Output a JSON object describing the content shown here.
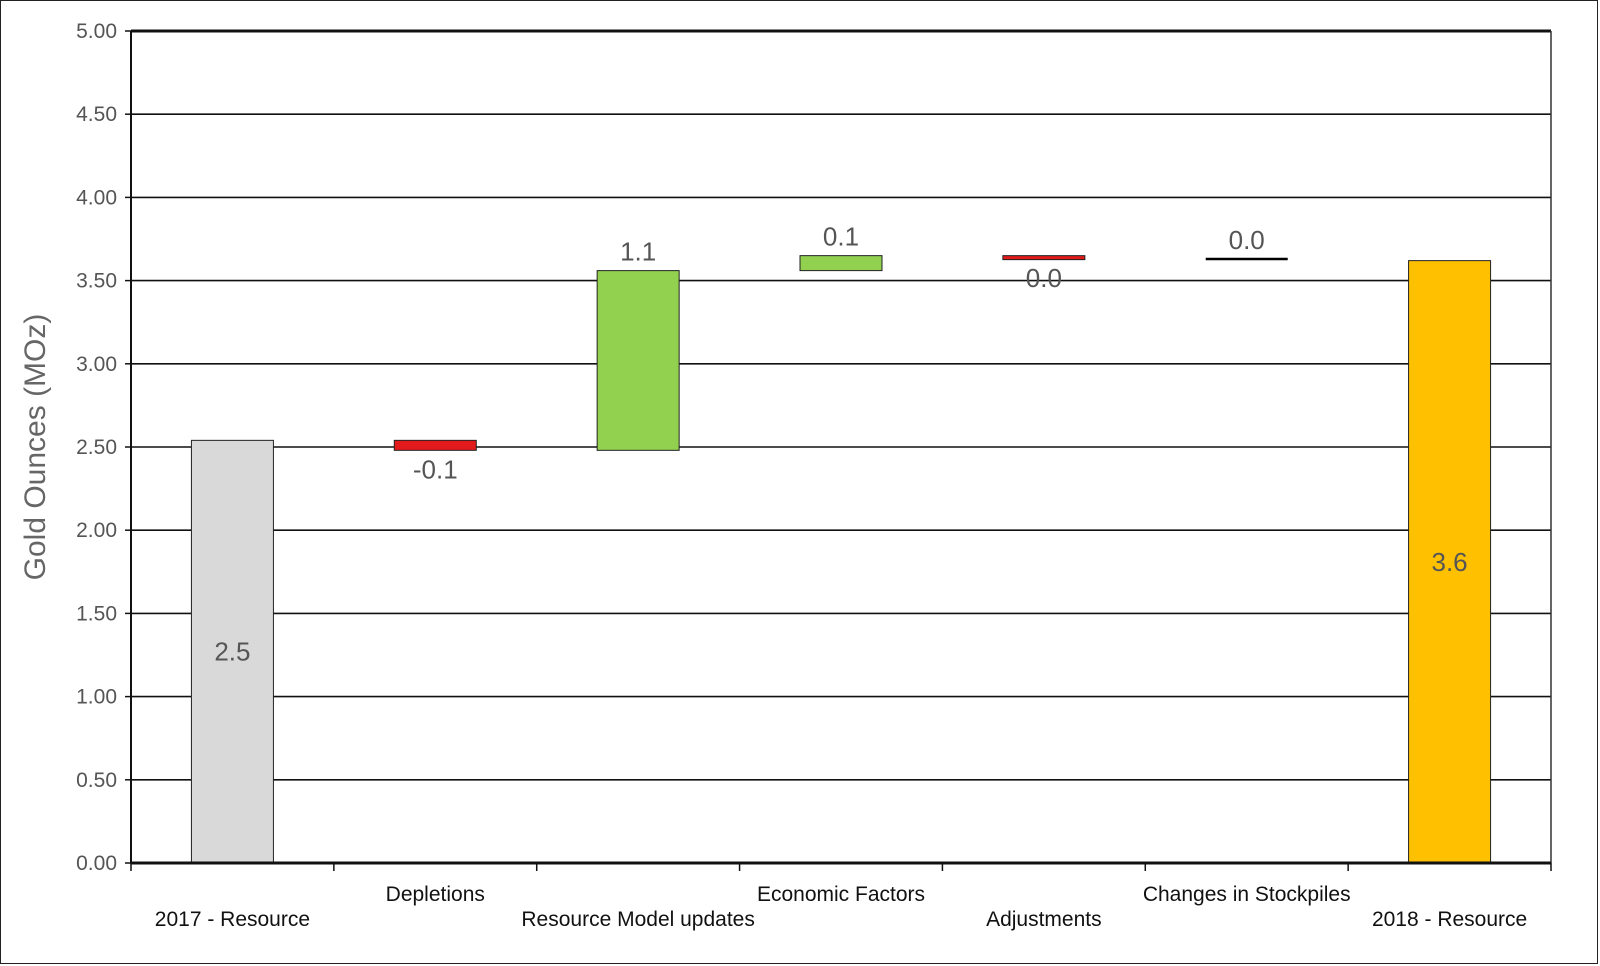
{
  "chart_data": {
    "type": "waterfall",
    "ylabel": "Gold Ounces (MOz)",
    "ylim": [
      0,
      5
    ],
    "y_ticks": [
      "0.00",
      "0.50",
      "1.00",
      "1.50",
      "2.00",
      "2.50",
      "3.00",
      "3.50",
      "4.00",
      "4.50",
      "5.00"
    ],
    "grid": true,
    "legend": "none",
    "steps": [
      {
        "category": "2017 - Resource",
        "kind": "total",
        "start": 0,
        "end": 2.54,
        "label": "2.5",
        "color": "#d9d9d9",
        "label_pos": "inside"
      },
      {
        "category": "Depletions",
        "kind": "decrease",
        "start": 2.54,
        "end": 2.48,
        "label": "-0.1",
        "color": "#e31a1c",
        "label_pos": "below"
      },
      {
        "category": "Resource Model updates",
        "kind": "increase",
        "start": 2.48,
        "end": 3.56,
        "label": "1.1",
        "color": "#92d050",
        "label_pos": "above"
      },
      {
        "category": "Economic Factors",
        "kind": "increase",
        "start": 3.56,
        "end": 3.65,
        "label": "0.1",
        "color": "#92d050",
        "label_pos": "above"
      },
      {
        "category": "Adjustments",
        "kind": "decrease",
        "start": 3.65,
        "end": 3.63,
        "label": "0.0",
        "color": "#e31a1c",
        "label_pos": "below"
      },
      {
        "category": "Changes in Stockpiles",
        "kind": "neutral",
        "start": 3.63,
        "end": 3.63,
        "label": "0.0",
        "color": "#000000",
        "label_pos": "above"
      },
      {
        "category": "2018 - Resource",
        "kind": "total",
        "start": 0,
        "end": 3.62,
        "label": "3.6",
        "color": "#ffc000",
        "label_pos": "inside"
      }
    ]
  }
}
